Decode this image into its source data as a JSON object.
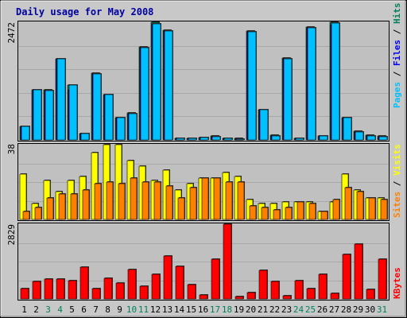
{
  "chart_data": [
    {
      "type": "bar",
      "title": "Daily usage for May 2008",
      "panel": "pages-files-hits",
      "ymax_label": "2472",
      "ylim": [
        0,
        2472
      ],
      "categories": [
        "1",
        "2",
        "3",
        "4",
        "5",
        "6",
        "7",
        "8",
        "9",
        "10",
        "11",
        "12",
        "13",
        "14",
        "15",
        "16",
        "17",
        "18",
        "19",
        "20",
        "21",
        "22",
        "23",
        "24",
        "25",
        "26",
        "27",
        "28",
        "29",
        "30",
        "31"
      ],
      "series": [
        {
          "name": "Hits",
          "color": "#00805c",
          "values": [
            290,
            1060,
            1050,
            1710,
            1160,
            140,
            1400,
            960,
            470,
            560,
            1950,
            2472,
            2300,
            40,
            40,
            50,
            80,
            40,
            30,
            2280,
            640,
            100,
            1720,
            40,
            2370,
            90,
            2472,
            470,
            180,
            100,
            80
          ]
        },
        {
          "name": "Files",
          "color": "#0000ff",
          "values": [
            280,
            1050,
            1040,
            1700,
            1050,
            130,
            1390,
            950,
            460,
            550,
            1940,
            2440,
            2290,
            35,
            35,
            45,
            70,
            35,
            25,
            2270,
            630,
            90,
            1710,
            35,
            2360,
            80,
            2430,
            460,
            170,
            90,
            70
          ]
        },
        {
          "name": "Pages",
          "color": "#00c0ff",
          "values": [
            280,
            1050,
            1040,
            1700,
            1150,
            130,
            1390,
            950,
            460,
            550,
            1940,
            2440,
            2290,
            35,
            35,
            45,
            70,
            35,
            25,
            2270,
            630,
            90,
            1710,
            35,
            2360,
            80,
            2450,
            460,
            170,
            90,
            70
          ]
        }
      ],
      "right_label": [
        {
          "text": "Pages",
          "color": "#00c0ff"
        },
        {
          "text": " / ",
          "color": "#000000"
        },
        {
          "text": "Files",
          "color": "#0000ff"
        },
        {
          "text": " / ",
          "color": "#000000"
        },
        {
          "text": "Hits",
          "color": "#00805c"
        }
      ]
    },
    {
      "type": "bar",
      "panel": "sites-visits",
      "ymax_label": "38",
      "ylim": [
        0,
        38
      ],
      "categories": [
        "1",
        "2",
        "3",
        "4",
        "5",
        "6",
        "7",
        "8",
        "9",
        "10",
        "11",
        "12",
        "13",
        "14",
        "15",
        "16",
        "17",
        "18",
        "19",
        "20",
        "21",
        "22",
        "23",
        "24",
        "25",
        "26",
        "27",
        "28",
        "29",
        "30",
        "31"
      ],
      "series": [
        {
          "name": "Visits",
          "color": "#ffff00",
          "values": [
            23,
            8,
            20,
            14,
            20,
            22,
            34,
            38,
            38,
            30,
            27,
            20,
            25,
            15,
            18,
            21,
            21,
            24,
            22,
            10,
            8,
            8,
            9,
            9,
            9,
            4,
            9,
            23,
            15,
            11,
            11
          ]
        },
        {
          "name": "Sites",
          "color": "#ff8000",
          "values": [
            4,
            6,
            11,
            13,
            13,
            15,
            18,
            19,
            18,
            21,
            19,
            19,
            17,
            11,
            16,
            21,
            21,
            19,
            19,
            7,
            6,
            5,
            6,
            9,
            8,
            4,
            10,
            16,
            14,
            11,
            10
          ]
        }
      ],
      "right_label": [
        {
          "text": "Sites",
          "color": "#ff8000"
        },
        {
          "text": " / ",
          "color": "#000000"
        },
        {
          "text": "Visits",
          "color": "#ffff00"
        }
      ]
    },
    {
      "type": "bar",
      "panel": "kbytes",
      "ymax_label": "2829",
      "ylim": [
        0,
        2829
      ],
      "categories": [
        "1",
        "2",
        "3",
        "4",
        "5",
        "6",
        "7",
        "8",
        "9",
        "10",
        "11",
        "12",
        "13",
        "14",
        "15",
        "16",
        "17",
        "18",
        "19",
        "20",
        "21",
        "22",
        "23",
        "24",
        "25",
        "26",
        "27",
        "28",
        "29",
        "30",
        "31"
      ],
      "series": [
        {
          "name": "KBytes",
          "color": "#ff0000",
          "values": [
            400,
            650,
            740,
            740,
            700,
            1190,
            390,
            780,
            600,
            1120,
            470,
            930,
            1640,
            1220,
            550,
            150,
            1500,
            2829,
            80,
            240,
            1090,
            650,
            110,
            680,
            390,
            940,
            200,
            1690,
            2090,
            370,
            1500
          ]
        }
      ],
      "right_label": [
        {
          "text": "KBytes",
          "color": "#ff0000"
        }
      ]
    }
  ],
  "x_axis": {
    "labels": [
      "1",
      "2",
      "3",
      "4",
      "5",
      "6",
      "7",
      "8",
      "9",
      "10",
      "11",
      "12",
      "13",
      "14",
      "15",
      "16",
      "17",
      "18",
      "19",
      "20",
      "21",
      "22",
      "23",
      "24",
      "25",
      "26",
      "27",
      "28",
      "29",
      "30",
      "31"
    ],
    "weekend_days": [
      "3",
      "4",
      "10",
      "11",
      "17",
      "18",
      "24",
      "25",
      "31"
    ],
    "weekday_color": "#000000",
    "weekend_color": "#00805c"
  },
  "colors": {
    "title": "#0000a0",
    "panel_bg": "#c0c0c0",
    "frame_bg": "#c8c8c8"
  }
}
